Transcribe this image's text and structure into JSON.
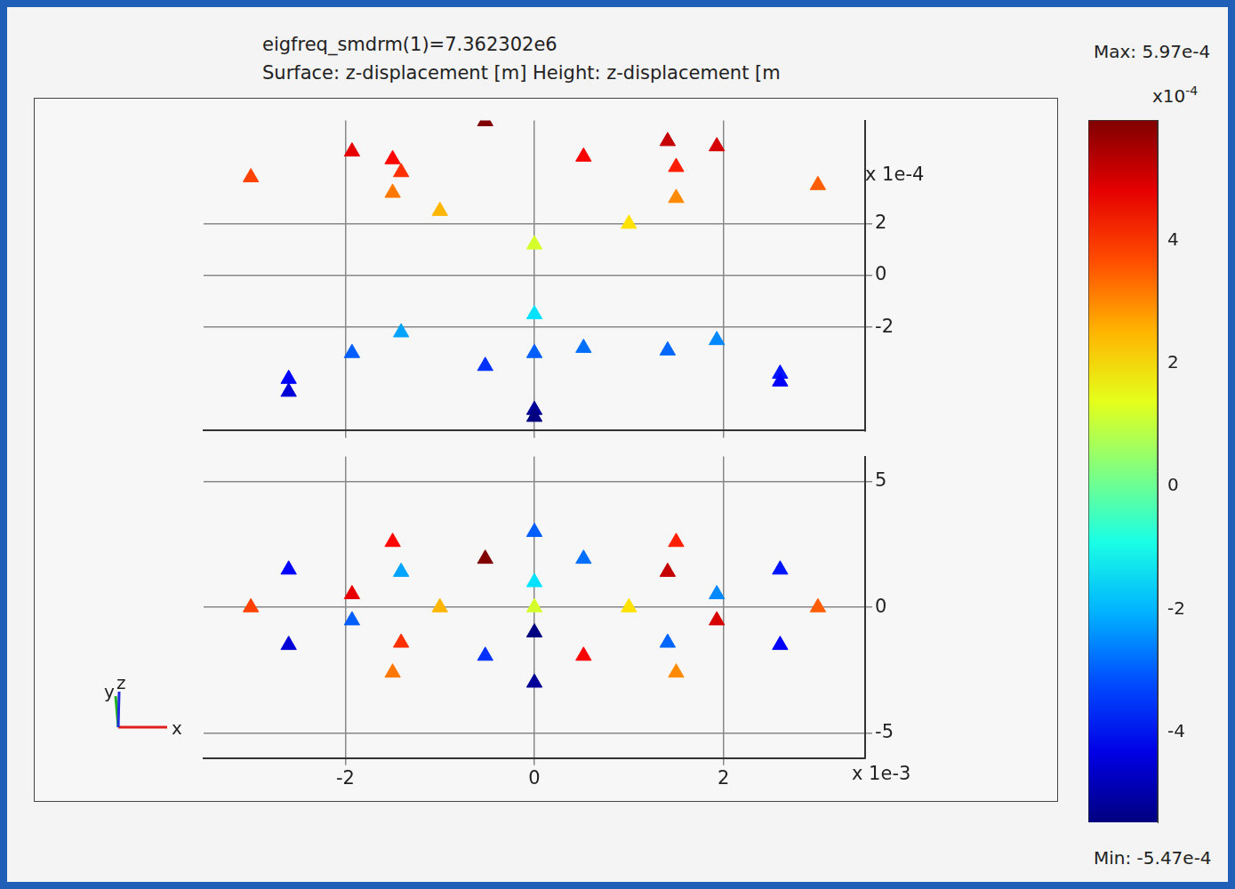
{
  "chart_data": {
    "type": "scatter",
    "title": "eigfreq_smdrm(1)=7.362302e6",
    "subtitle": "Surface: z-displacement [m]    Height: z-displacement [m",
    "x_multiplier": "x 1e-3",
    "z_multiplier": "x 1e-4",
    "axes_triad": [
      "x",
      "y",
      "z"
    ],
    "xlim": [
      -3.5,
      3.5
    ],
    "xticks": [
      -2,
      0,
      2
    ],
    "ylim": [
      -6,
      6
    ],
    "yticks": [
      -5,
      0,
      5
    ],
    "zlim": [
      -6,
      6
    ],
    "zticks": [
      -2,
      0,
      2
    ],
    "grid": true,
    "marker": "triangle",
    "points": {
      "x": [
        3.0,
        2.6,
        1.5,
        0,
        -1.5,
        -2.6,
        -3.0,
        -2.6,
        -1.5,
        0,
        1.5,
        2.6,
        1.93,
        1.41,
        0.52,
        -0.52,
        -1.41,
        -1.93,
        -1.93,
        -1.41,
        -0.52,
        0.52,
        1.41,
        1.93,
        1,
        0,
        -1,
        0,
        0
      ],
      "y": [
        0,
        1.5,
        2.6,
        3.0,
        2.6,
        1.5,
        0,
        -1.5,
        -2.6,
        -3.0,
        -2.6,
        -1.5,
        0.52,
        1.41,
        1.93,
        1.93,
        1.41,
        0.52,
        -0.52,
        -1.41,
        -1.93,
        -1.93,
        -1.41,
        -0.52,
        0,
        1,
        0,
        -1,
        0
      ],
      "z": [
        3.5,
        -3.8,
        4.2,
        -3.0,
        4.5,
        -4.0,
        3.8,
        -4.5,
        3.2,
        -5.2,
        3.0,
        -4.1,
        -2.5,
        5.2,
        -2.8,
        5.97,
        -2.2,
        4.8,
        -3.0,
        4.0,
        -3.5,
        4.6,
        -2.9,
        5.0,
        2.0,
        -1.5,
        2.5,
        -5.47,
        1.2
      ]
    },
    "colorbar": {
      "range": [
        -5.47,
        5.97
      ],
      "ticks": [
        -4,
        -2,
        0,
        2,
        4
      ],
      "multiplier_base": "x10",
      "multiplier_exponent": "-4",
      "max_label": "Max: 5.97e-4",
      "min_label": "Min: -5.47e-4"
    }
  }
}
